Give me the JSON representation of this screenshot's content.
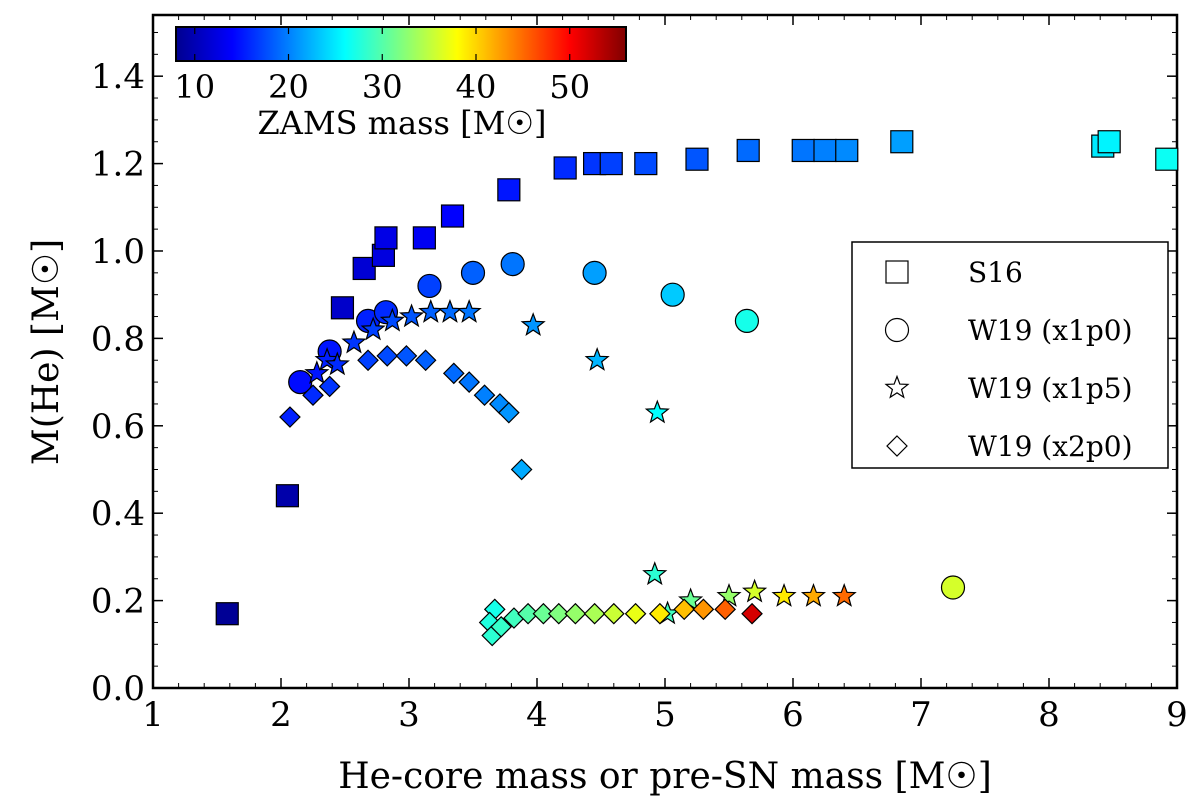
{
  "chart_data": {
    "type": "scatter",
    "xlabel": "He-core mass or pre-SN mass [M☉]",
    "ylabel": "M(He) [M☉]",
    "xlim": [
      1,
      9
    ],
    "ylim": [
      0.0,
      1.54
    ],
    "xticks": [
      1,
      2,
      3,
      4,
      5,
      6,
      7,
      8,
      9
    ],
    "yticks": [
      0.0,
      0.2,
      0.4,
      0.6,
      0.8,
      1.0,
      1.2,
      1.4
    ],
    "ytick_labels": [
      "0.0",
      "0.2",
      "0.4",
      "0.6",
      "0.8",
      "1.0",
      "1.2",
      "1.4"
    ],
    "colorbar": {
      "label": "ZAMS mass [M☉]",
      "min": 8,
      "max": 56,
      "ticks": [
        10,
        20,
        30,
        40,
        50
      ],
      "colormap": "jet",
      "placement": "top-left"
    },
    "legend_placement": "right",
    "series": [
      {
        "name": "S16",
        "marker": "square",
        "points": [
          {
            "x": 1.58,
            "y": 0.17,
            "zams": 9.0
          },
          {
            "x": 2.05,
            "y": 0.44,
            "zams": 10.0
          },
          {
            "x": 2.48,
            "y": 0.87,
            "zams": 11.5
          },
          {
            "x": 2.65,
            "y": 0.96,
            "zams": 12.0
          },
          {
            "x": 2.8,
            "y": 0.99,
            "zams": 12.5
          },
          {
            "x": 2.82,
            "y": 1.03,
            "zams": 12.8
          },
          {
            "x": 3.12,
            "y": 1.03,
            "zams": 13.5
          },
          {
            "x": 3.34,
            "y": 1.08,
            "zams": 14.0
          },
          {
            "x": 3.78,
            "y": 1.14,
            "zams": 15.0
          },
          {
            "x": 4.22,
            "y": 1.19,
            "zams": 16.0
          },
          {
            "x": 4.45,
            "y": 1.2,
            "zams": 16.5
          },
          {
            "x": 4.58,
            "y": 1.2,
            "zams": 17.0
          },
          {
            "x": 4.85,
            "y": 1.2,
            "zams": 17.5
          },
          {
            "x": 5.25,
            "y": 1.21,
            "zams": 18.0
          },
          {
            "x": 5.65,
            "y": 1.23,
            "zams": 19.0
          },
          {
            "x": 6.08,
            "y": 1.23,
            "zams": 19.5
          },
          {
            "x": 6.25,
            "y": 1.23,
            "zams": 20.0
          },
          {
            "x": 6.42,
            "y": 1.23,
            "zams": 20.5
          },
          {
            "x": 6.85,
            "y": 1.25,
            "zams": 21.5
          },
          {
            "x": 8.42,
            "y": 1.24,
            "zams": 25.0
          },
          {
            "x": 8.47,
            "y": 1.25,
            "zams": 25.5
          },
          {
            "x": 8.92,
            "y": 1.21,
            "zams": 26.5
          }
        ]
      },
      {
        "name": "W19 (x1p0)",
        "marker": "circle",
        "points": [
          {
            "x": 2.15,
            "y": 0.7,
            "zams": 14.5
          },
          {
            "x": 2.38,
            "y": 0.77,
            "zams": 15.0
          },
          {
            "x": 2.68,
            "y": 0.84,
            "zams": 15.5
          },
          {
            "x": 2.82,
            "y": 0.86,
            "zams": 16.0
          },
          {
            "x": 3.16,
            "y": 0.92,
            "zams": 17.0
          },
          {
            "x": 3.5,
            "y": 0.95,
            "zams": 18.5
          },
          {
            "x": 3.81,
            "y": 0.97,
            "zams": 19.5
          },
          {
            "x": 4.45,
            "y": 0.95,
            "zams": 21.5
          },
          {
            "x": 5.06,
            "y": 0.9,
            "zams": 23.5
          },
          {
            "x": 5.64,
            "y": 0.84,
            "zams": 27.0
          },
          {
            "x": 7.25,
            "y": 0.23,
            "zams": 36.0
          }
        ]
      },
      {
        "name": "W19 (x1p5)",
        "marker": "star",
        "points": [
          {
            "x": 2.28,
            "y": 0.72,
            "zams": 15.0
          },
          {
            "x": 2.36,
            "y": 0.75,
            "zams": 15.5
          },
          {
            "x": 2.44,
            "y": 0.74,
            "zams": 16.0
          },
          {
            "x": 2.57,
            "y": 0.79,
            "zams": 16.5
          },
          {
            "x": 2.72,
            "y": 0.82,
            "zams": 17.0
          },
          {
            "x": 2.87,
            "y": 0.84,
            "zams": 17.5
          },
          {
            "x": 3.02,
            "y": 0.85,
            "zams": 18.0
          },
          {
            "x": 3.17,
            "y": 0.86,
            "zams": 18.5
          },
          {
            "x": 3.32,
            "y": 0.86,
            "zams": 19.0
          },
          {
            "x": 3.47,
            "y": 0.86,
            "zams": 19.5
          },
          {
            "x": 3.97,
            "y": 0.83,
            "zams": 21.0
          },
          {
            "x": 4.47,
            "y": 0.75,
            "zams": 22.5
          },
          {
            "x": 4.94,
            "y": 0.63,
            "zams": 26.0
          },
          {
            "x": 4.92,
            "y": 0.26,
            "zams": 28.0
          },
          {
            "x": 5.02,
            "y": 0.17,
            "zams": 29.0
          },
          {
            "x": 5.2,
            "y": 0.2,
            "zams": 31.0
          },
          {
            "x": 5.5,
            "y": 0.21,
            "zams": 33.0
          },
          {
            "x": 5.7,
            "y": 0.22,
            "zams": 36.0
          },
          {
            "x": 5.93,
            "y": 0.21,
            "zams": 39.0
          },
          {
            "x": 6.16,
            "y": 0.21,
            "zams": 42.0
          },
          {
            "x": 6.4,
            "y": 0.21,
            "zams": 45.0
          }
        ]
      },
      {
        "name": "W19 (x2p0)",
        "marker": "diamond",
        "points": [
          {
            "x": 2.07,
            "y": 0.62,
            "zams": 15.5
          },
          {
            "x": 2.25,
            "y": 0.67,
            "zams": 16.0
          },
          {
            "x": 2.38,
            "y": 0.69,
            "zams": 16.5
          },
          {
            "x": 2.68,
            "y": 0.75,
            "zams": 17.0
          },
          {
            "x": 2.83,
            "y": 0.76,
            "zams": 17.5
          },
          {
            "x": 2.98,
            "y": 0.76,
            "zams": 18.0
          },
          {
            "x": 3.13,
            "y": 0.75,
            "zams": 18.5
          },
          {
            "x": 3.35,
            "y": 0.72,
            "zams": 19.0
          },
          {
            "x": 3.47,
            "y": 0.7,
            "zams": 19.5
          },
          {
            "x": 3.59,
            "y": 0.67,
            "zams": 20.0
          },
          {
            "x": 3.71,
            "y": 0.65,
            "zams": 20.5
          },
          {
            "x": 3.78,
            "y": 0.63,
            "zams": 21.0
          },
          {
            "x": 3.88,
            "y": 0.5,
            "zams": 22.0
          },
          {
            "x": 3.67,
            "y": 0.18,
            "zams": 27.0
          },
          {
            "x": 3.63,
            "y": 0.15,
            "zams": 27.5
          },
          {
            "x": 3.65,
            "y": 0.12,
            "zams": 28.0
          },
          {
            "x": 3.72,
            "y": 0.14,
            "zams": 28.5
          },
          {
            "x": 3.82,
            "y": 0.16,
            "zams": 29.0
          },
          {
            "x": 3.93,
            "y": 0.17,
            "zams": 30.0
          },
          {
            "x": 4.05,
            "y": 0.17,
            "zams": 31.0
          },
          {
            "x": 4.17,
            "y": 0.17,
            "zams": 32.0
          },
          {
            "x": 4.3,
            "y": 0.17,
            "zams": 33.0
          },
          {
            "x": 4.45,
            "y": 0.17,
            "zams": 34.0
          },
          {
            "x": 4.6,
            "y": 0.17,
            "zams": 35.5
          },
          {
            "x": 4.77,
            "y": 0.17,
            "zams": 37.0
          },
          {
            "x": 4.96,
            "y": 0.17,
            "zams": 39.0
          },
          {
            "x": 5.15,
            "y": 0.18,
            "zams": 41.0
          },
          {
            "x": 5.3,
            "y": 0.18,
            "zams": 43.0
          },
          {
            "x": 5.47,
            "y": 0.18,
            "zams": 45.5
          },
          {
            "x": 5.68,
            "y": 0.17,
            "zams": 52.0
          }
        ]
      }
    ]
  }
}
